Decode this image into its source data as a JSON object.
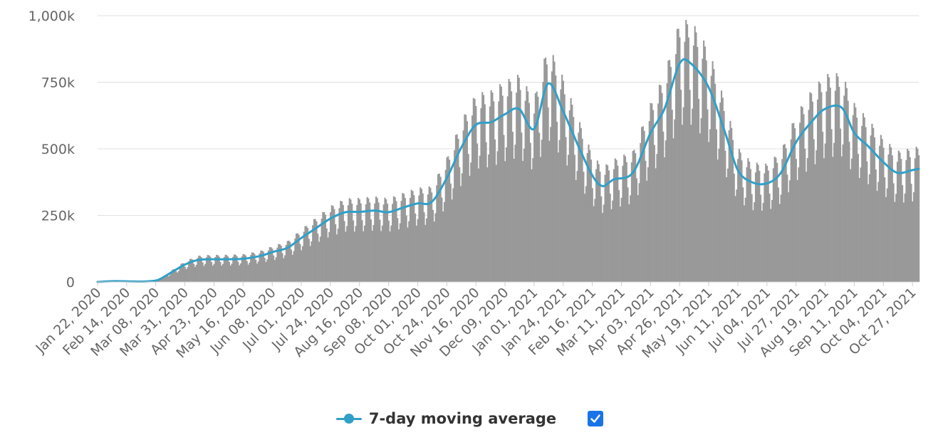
{
  "chart_data": {
    "type": "bar",
    "y_ticks": [
      "0",
      "250k",
      "500k",
      "750k",
      "1,000k"
    ],
    "ylim": [
      0,
      1000000
    ],
    "x_tick_labels": [
      "Jan 22, 2020",
      "Feb 14, 2020",
      "Mar 08, 2020",
      "Mar 31, 2020",
      "Apr 23, 2020",
      "May 16, 2020",
      "Jun 08, 2020",
      "Jul 01, 2020",
      "Jul 24, 2020",
      "Aug 16, 2020",
      "Sep 08, 2020",
      "Oct 01, 2020",
      "Oct 24, 2020",
      "Nov 16, 2020",
      "Dec 09, 2020",
      "Jan 01, 2021",
      "Jan 24, 2021",
      "Feb 16, 2021",
      "Mar 11, 2021",
      "Apr 03, 2021",
      "Apr 26, 2021",
      "May 19, 2021",
      "Jun 11, 2021",
      "Jul 04, 2021",
      "Jul 27, 2021",
      "Aug 19, 2021",
      "Sep 11, 2021",
      "Oct 04, 2021",
      "Oct 27, 2021"
    ],
    "x_range": [
      "Jan 22, 2020",
      "Nov 01, 2021"
    ],
    "grid": true,
    "legend_position": "bottom",
    "bar_color": "#999999",
    "series": [
      {
        "name": "7-day moving average",
        "type": "line",
        "color": "#30a0c8",
        "points": [
          [
            "Jan 22, 2020",
            0
          ],
          [
            "Feb 05, 2020",
            3000
          ],
          [
            "Feb 20, 2020",
            1500
          ],
          [
            "Mar 01, 2020",
            2000
          ],
          [
            "Mar 10, 2020",
            8000
          ],
          [
            "Mar 20, 2020",
            35000
          ],
          [
            "Mar 31, 2020",
            65000
          ],
          [
            "Apr 10, 2020",
            82000
          ],
          [
            "Apr 20, 2020",
            85000
          ],
          [
            "May 01, 2020",
            85000
          ],
          [
            "May 16, 2020",
            87000
          ],
          [
            "May 30, 2020",
            98000
          ],
          [
            "Jun 08, 2020",
            112000
          ],
          [
            "Jun 20, 2020",
            128000
          ],
          [
            "Jul 01, 2020",
            165000
          ],
          [
            "Jul 12, 2020",
            200000
          ],
          [
            "Jul 24, 2020",
            238000
          ],
          [
            "Aug 05, 2020",
            262000
          ],
          [
            "Aug 16, 2020",
            263000
          ],
          [
            "Aug 28, 2020",
            268000
          ],
          [
            "Sep 08, 2020",
            262000
          ],
          [
            "Sep 20, 2020",
            280000
          ],
          [
            "Oct 01, 2020",
            295000
          ],
          [
            "Oct 12, 2020",
            300000
          ],
          [
            "Oct 24, 2020",
            390000
          ],
          [
            "Nov 05, 2020",
            510000
          ],
          [
            "Nov 16, 2020",
            590000
          ],
          [
            "Nov 28, 2020",
            600000
          ],
          [
            "Dec 09, 2020",
            630000
          ],
          [
            "Dec 20, 2020",
            650000
          ],
          [
            "Jan 01, 2021",
            575000
          ],
          [
            "Jan 12, 2021",
            745000
          ],
          [
            "Jan 24, 2021",
            640000
          ],
          [
            "Feb 05, 2021",
            510000
          ],
          [
            "Feb 16, 2021",
            400000
          ],
          [
            "Feb 24, 2021",
            360000
          ],
          [
            "Mar 05, 2021",
            385000
          ],
          [
            "Mar 20, 2021",
            410000
          ],
          [
            "Apr 03, 2021",
            560000
          ],
          [
            "Apr 14, 2021",
            650000
          ],
          [
            "Apr 26, 2021",
            820000
          ],
          [
            "May 05, 2021",
            820000
          ],
          [
            "May 19, 2021",
            730000
          ],
          [
            "Jun 01, 2021",
            560000
          ],
          [
            "Jun 11, 2021",
            420000
          ],
          [
            "Jun 22, 2021",
            375000
          ],
          [
            "Jul 04, 2021",
            370000
          ],
          [
            "Jul 15, 2021",
            410000
          ],
          [
            "Jul 27, 2021",
            525000
          ],
          [
            "Aug 08, 2021",
            600000
          ],
          [
            "Aug 19, 2021",
            650000
          ],
          [
            "Sep 01, 2021",
            655000
          ],
          [
            "Sep 11, 2021",
            560000
          ],
          [
            "Sep 22, 2021",
            510000
          ],
          [
            "Oct 04, 2021",
            450000
          ],
          [
            "Oct 15, 2021",
            410000
          ],
          [
            "Oct 27, 2021",
            420000
          ],
          [
            "Nov 01, 2021",
            425000
          ]
        ]
      }
    ],
    "daily_envelope_peaks": [
      [
        "Jul 24, 2020",
        295000
      ],
      [
        "Jan 12, 2021",
        840000
      ],
      [
        "Apr 26, 2021",
        900000
      ],
      [
        "Aug 30, 2021",
        745000
      ],
      [
        "Nov 01, 2021",
        480000
      ]
    ]
  },
  "legend": {
    "label": "7-day moving average",
    "checked": true
  }
}
